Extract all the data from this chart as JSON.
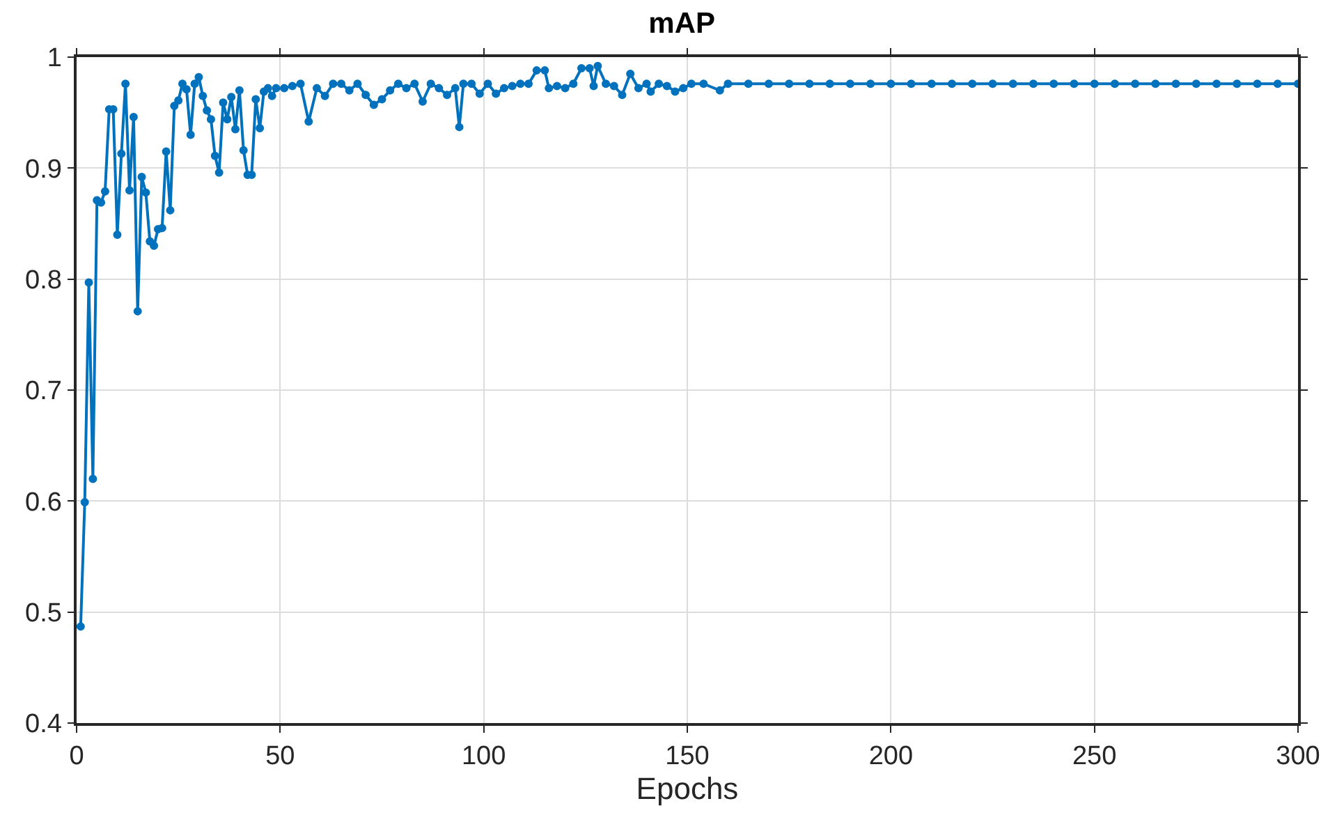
{
  "chart_data": {
    "type": "line",
    "title": "mAP",
    "xlabel": "Epochs",
    "xlim": [
      0,
      300
    ],
    "xticks": [
      0,
      50,
      100,
      150,
      200,
      250,
      300
    ],
    "ylim": [
      0.4,
      1
    ],
    "yticks": [
      0.4,
      0.5,
      0.6,
      0.7,
      0.8,
      0.9,
      1
    ],
    "grid": true,
    "marker": "circle",
    "line_style": "solid",
    "series": [
      {
        "color": "#0072bd",
        "x": [
          1,
          2,
          3,
          4,
          5,
          6,
          7,
          8,
          9,
          10,
          11,
          12,
          13,
          14,
          15,
          16,
          17,
          18,
          19,
          20,
          21,
          22,
          23,
          24,
          25,
          26,
          27,
          28,
          29,
          30,
          31,
          32,
          33,
          34,
          35,
          36,
          37,
          38,
          39,
          40,
          41,
          42,
          43,
          44,
          45,
          46,
          47,
          48,
          49,
          51,
          53,
          55,
          57,
          59,
          61,
          63,
          65,
          67,
          69,
          71,
          73,
          75,
          77,
          79,
          81,
          83,
          85,
          87,
          89,
          91,
          93,
          94,
          95,
          97,
          99,
          101,
          103,
          105,
          107,
          109,
          111,
          113,
          115,
          116,
          118,
          120,
          122,
          124,
          126,
          127,
          128,
          130,
          132,
          134,
          136,
          138,
          140,
          141,
          143,
          145,
          147,
          149,
          151,
          154,
          158,
          160,
          165,
          170,
          175,
          180,
          185,
          190,
          195,
          200,
          205,
          210,
          215,
          220,
          225,
          230,
          235,
          240,
          245,
          250,
          255,
          260,
          265,
          270,
          275,
          280,
          285,
          290,
          295,
          300
        ],
        "values": [
          0.487,
          0.599,
          0.797,
          0.62,
          0.871,
          0.869,
          0.879,
          0.953,
          0.953,
          0.84,
          0.913,
          0.976,
          0.88,
          0.946,
          0.771,
          0.892,
          0.878,
          0.834,
          0.83,
          0.845,
          0.846,
          0.915,
          0.862,
          0.956,
          0.961,
          0.976,
          0.971,
          0.93,
          0.976,
          0.982,
          0.965,
          0.952,
          0.944,
          0.911,
          0.896,
          0.959,
          0.944,
          0.964,
          0.935,
          0.97,
          0.916,
          0.894,
          0.894,
          0.962,
          0.936,
          0.969,
          0.972,
          0.965,
          0.972,
          0.972,
          0.974,
          0.976,
          0.942,
          0.972,
          0.965,
          0.976,
          0.976,
          0.97,
          0.976,
          0.966,
          0.957,
          0.962,
          0.97,
          0.976,
          0.972,
          0.976,
          0.96,
          0.976,
          0.972,
          0.966,
          0.972,
          0.937,
          0.976,
          0.976,
          0.967,
          0.976,
          0.967,
          0.972,
          0.974,
          0.976,
          0.976,
          0.988,
          0.988,
          0.972,
          0.974,
          0.972,
          0.976,
          0.99,
          0.99,
          0.974,
          0.992,
          0.976,
          0.974,
          0.966,
          0.985,
          0.972,
          0.976,
          0.969,
          0.976,
          0.974,
          0.969,
          0.972,
          0.976,
          0.976,
          0.97,
          0.976,
          0.976,
          0.976,
          0.976,
          0.976,
          0.976,
          0.976,
          0.976,
          0.976,
          0.976,
          0.976,
          0.976,
          0.976,
          0.976,
          0.976,
          0.976,
          0.976,
          0.976,
          0.976,
          0.976,
          0.976,
          0.976,
          0.976,
          0.976,
          0.976,
          0.976,
          0.976,
          0.976,
          0.976
        ]
      }
    ]
  }
}
